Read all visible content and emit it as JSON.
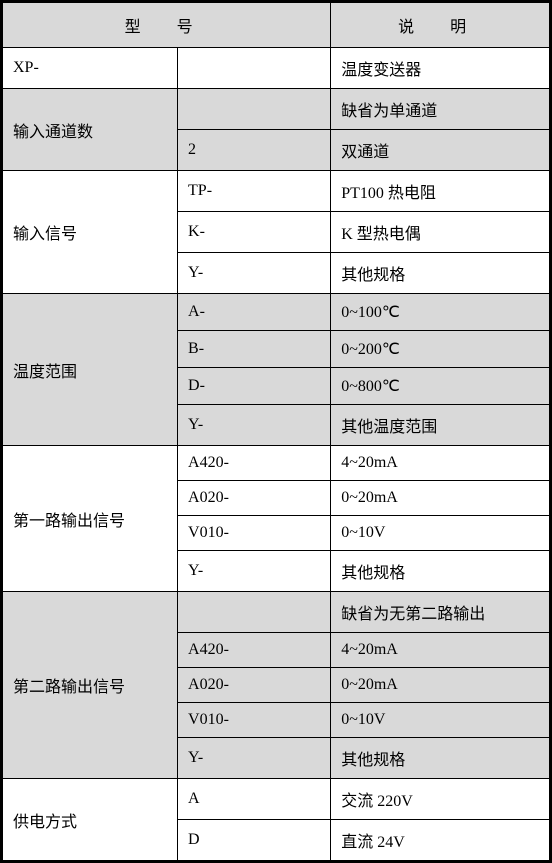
{
  "colors": {
    "border": "#000000",
    "gray_bg": "#d9d9d9",
    "white_bg": "#ffffff",
    "text": "#000000"
  },
  "table": {
    "header": {
      "col1": "型  号",
      "col3": "说  明"
    },
    "rows": [
      {
        "label": "XP-",
        "code": "",
        "desc": "温度变送器",
        "bg": "white",
        "label_rowspan": 1
      },
      {
        "label": "输入通道数",
        "code": "",
        "desc": "缺省为单通道",
        "bg": "gray",
        "label_rowspan": 2
      },
      {
        "label": null,
        "code": "2",
        "desc": "双通道",
        "bg": "gray"
      },
      {
        "label": "输入信号",
        "code": "TP-",
        "desc": "PT100 热电阻",
        "bg": "white",
        "label_rowspan": 3
      },
      {
        "label": null,
        "code": "K-",
        "desc": "K 型热电偶",
        "bg": "white"
      },
      {
        "label": null,
        "code": "Y-",
        "desc": "其他规格",
        "bg": "white"
      },
      {
        "label": "温度范围",
        "code": "A-",
        "desc": "0~100℃",
        "bg": "gray",
        "label_rowspan": 4
      },
      {
        "label": null,
        "code": "B-",
        "desc": "0~200℃",
        "bg": "gray"
      },
      {
        "label": null,
        "code": "D-",
        "desc": "0~800℃",
        "bg": "gray"
      },
      {
        "label": null,
        "code": "Y-",
        "desc": "其他温度范围",
        "bg": "gray"
      },
      {
        "label": "第一路输出信号",
        "code": "A420-",
        "desc": "4~20mA",
        "bg": "white",
        "label_rowspan": 4
      },
      {
        "label": null,
        "code": "A020-",
        "desc": "0~20mA",
        "bg": "white"
      },
      {
        "label": null,
        "code": "V010-",
        "desc": "0~10V",
        "bg": "white"
      },
      {
        "label": null,
        "code": "Y-",
        "desc": "其他规格",
        "bg": "white"
      },
      {
        "label": "第二路输出信号",
        "code": "",
        "desc": "缺省为无第二路输出",
        "bg": "gray",
        "label_rowspan": 5
      },
      {
        "label": null,
        "code": "A420-",
        "desc": "4~20mA",
        "bg": "gray"
      },
      {
        "label": null,
        "code": "A020-",
        "desc": "0~20mA",
        "bg": "gray"
      },
      {
        "label": null,
        "code": "V010-",
        "desc": "0~10V",
        "bg": "gray"
      },
      {
        "label": null,
        "code": "Y-",
        "desc": "其他规格",
        "bg": "gray"
      },
      {
        "label": "供电方式",
        "code": "A",
        "desc": "交流 220V",
        "bg": "white",
        "label_rowspan": 2
      },
      {
        "label": null,
        "code": "D",
        "desc": "直流 24V",
        "bg": "white"
      }
    ]
  }
}
